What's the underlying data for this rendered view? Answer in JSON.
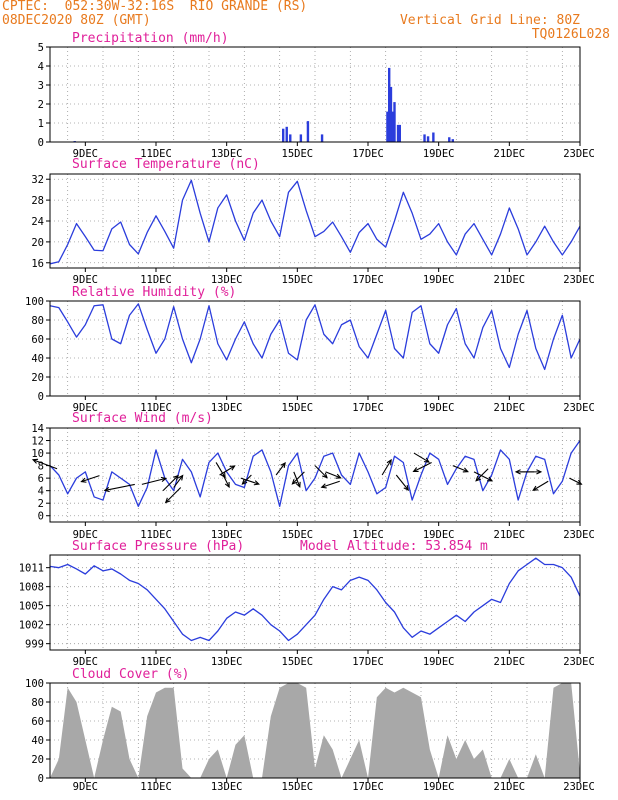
{
  "header": {
    "left_line1": "CPTEC:  052:30W-32:16S  RIO GRANDE (RS)",
    "left_line2": "08DEC2020 80Z (GMT)",
    "right_line1": "Vertical Grid Line: 80Z",
    "right_line2": "TQ0126L028"
  },
  "colors": {
    "header": "#e87a1e",
    "panel_title": "#e0209a",
    "line": "#2b3ddc",
    "arrow": "#000000",
    "cloud_fill": "#a8a8a8"
  },
  "chart_data": [
    {
      "id": "precip",
      "type": "bar",
      "title": "Precipitation (mm/h)",
      "ylim": [
        0,
        5
      ],
      "yticks": [
        "0",
        "1",
        "2",
        "3",
        "4",
        "5"
      ],
      "xticks": [
        "9DEC",
        "11DEC",
        "13DEC",
        "15DEC",
        "17DEC",
        "19DEC",
        "21DEC",
        "23DEC"
      ],
      "grid": true,
      "x": [
        8.7,
        14.6,
        14.7,
        14.8,
        15.1,
        15.3,
        15.7,
        17.55,
        17.6,
        17.65,
        17.7,
        17.75,
        17.85,
        17.9,
        18.6,
        18.7,
        18.85,
        19.3,
        19.4
      ],
      "values": [
        0.05,
        0.7,
        0.8,
        0.4,
        0.4,
        1.1,
        0.4,
        1.6,
        3.9,
        2.9,
        1.6,
        2.1,
        0.9,
        0.9,
        0.4,
        0.3,
        0.5,
        0.25,
        0.15
      ]
    },
    {
      "id": "temp",
      "type": "line",
      "title": "Surface Temperature (nC)",
      "ylim": [
        15,
        33
      ],
      "yticks": [
        "16",
        "20",
        "24",
        "28",
        "32"
      ],
      "xticks": [
        "9DEC",
        "11DEC",
        "13DEC",
        "15DEC",
        "17DEC",
        "19DEC",
        "21DEC",
        "23DEC"
      ],
      "grid": true,
      "x": [
        8.0,
        8.25,
        8.5,
        8.75,
        9.0,
        9.25,
        9.5,
        9.75,
        10.0,
        10.25,
        10.5,
        10.75,
        11.0,
        11.25,
        11.5,
        11.75,
        12.0,
        12.25,
        12.5,
        12.75,
        13.0,
        13.25,
        13.5,
        13.75,
        14.0,
        14.25,
        14.5,
        14.75,
        15.0,
        15.25,
        15.5,
        15.75,
        16.0,
        16.25,
        16.5,
        16.75,
        17.0,
        17.25,
        17.5,
        17.75,
        18.0,
        18.25,
        18.5,
        18.75,
        19.0,
        19.25,
        19.5,
        19.75,
        20.0,
        20.25,
        20.5,
        20.75,
        21.0,
        21.25,
        21.5,
        21.75,
        22.0,
        22.25,
        22.5,
        22.75,
        23.0
      ],
      "values": [
        15.8,
        16.2,
        19.5,
        23.5,
        21.0,
        18.4,
        18.3,
        22.5,
        23.8,
        19.5,
        17.7,
        21.8,
        25.0,
        22.0,
        18.8,
        28.0,
        31.8,
        25.5,
        20.0,
        26.5,
        29.0,
        24.0,
        20.3,
        25.5,
        28.0,
        24.0,
        21.0,
        29.5,
        31.6,
        26.0,
        21.0,
        22.0,
        23.8,
        21.0,
        18.0,
        21.8,
        23.5,
        20.5,
        19.0,
        24.0,
        29.5,
        25.5,
        20.5,
        21.5,
        23.5,
        20.0,
        17.5,
        21.5,
        23.5,
        20.5,
        17.5,
        21.5,
        26.5,
        22.5,
        17.5,
        20.0,
        23.0,
        20.0,
        17.5,
        20.0,
        23.0
      ]
    },
    {
      "id": "rh",
      "type": "line",
      "title": "Relative Humidity (%)",
      "ylim": [
        0,
        100
      ],
      "yticks": [
        "0",
        "20",
        "40",
        "60",
        "80",
        "100"
      ],
      "xticks": [
        "9DEC",
        "11DEC",
        "13DEC",
        "15DEC",
        "17DEC",
        "19DEC",
        "21DEC",
        "23DEC"
      ],
      "grid": true,
      "x": [
        8.0,
        8.25,
        8.5,
        8.75,
        9.0,
        9.25,
        9.5,
        9.75,
        10.0,
        10.25,
        10.5,
        10.75,
        11.0,
        11.25,
        11.5,
        11.75,
        12.0,
        12.25,
        12.5,
        12.75,
        13.0,
        13.25,
        13.5,
        13.75,
        14.0,
        14.25,
        14.5,
        14.75,
        15.0,
        15.25,
        15.5,
        15.75,
        16.0,
        16.25,
        16.5,
        16.75,
        17.0,
        17.25,
        17.5,
        17.75,
        18.0,
        18.25,
        18.5,
        18.75,
        19.0,
        19.25,
        19.5,
        19.75,
        20.0,
        20.25,
        20.5,
        20.75,
        21.0,
        21.25,
        21.5,
        21.75,
        22.0,
        22.25,
        22.5,
        22.75,
        23.0
      ],
      "values": [
        95,
        93,
        78,
        62,
        75,
        95,
        96,
        60,
        55,
        85,
        97,
        70,
        45,
        60,
        94,
        60,
        35,
        60,
        95,
        55,
        38,
        60,
        78,
        55,
        40,
        65,
        80,
        45,
        38,
        80,
        96,
        65,
        55,
        75,
        80,
        52,
        40,
        65,
        90,
        50,
        40,
        88,
        95,
        55,
        45,
        75,
        92,
        55,
        40,
        72,
        90,
        50,
        30,
        65,
        90,
        50,
        28,
        60,
        85,
        40,
        60
      ]
    },
    {
      "id": "wind",
      "type": "line",
      "title": "Surface Wind (m/s)",
      "ylim": [
        -1,
        14
      ],
      "yticks": [
        "0",
        "2",
        "4",
        "6",
        "8",
        "10",
        "12",
        "14"
      ],
      "xticks": [
        "9DEC",
        "11DEC",
        "13DEC",
        "15DEC",
        "17DEC",
        "19DEC",
        "21DEC",
        "23DEC"
      ],
      "grid": true,
      "x": [
        8.0,
        8.25,
        8.5,
        8.75,
        9.0,
        9.25,
        9.5,
        9.75,
        10.0,
        10.25,
        10.5,
        10.75,
        11.0,
        11.25,
        11.5,
        11.75,
        12.0,
        12.25,
        12.5,
        12.75,
        13.0,
        13.25,
        13.5,
        13.75,
        14.0,
        14.25,
        14.5,
        14.75,
        15.0,
        15.25,
        15.5,
        15.75,
        16.0,
        16.25,
        16.5,
        16.75,
        17.0,
        17.25,
        17.5,
        17.75,
        18.0,
        18.25,
        18.5,
        18.75,
        19.0,
        19.25,
        19.5,
        19.75,
        20.0,
        20.25,
        20.5,
        20.75,
        21.0,
        21.25,
        21.5,
        21.75,
        22.0,
        22.25,
        22.5,
        22.75,
        23.0
      ],
      "values": [
        8.0,
        6.5,
        3.5,
        6.0,
        7.0,
        3.0,
        2.5,
        7.0,
        6.0,
        5.0,
        1.5,
        4.5,
        10.5,
        6.0,
        4.0,
        9.0,
        7.0,
        3.0,
        8.5,
        10.0,
        7.0,
        5.0,
        4.5,
        9.5,
        10.5,
        7.0,
        1.5,
        8.0,
        10.0,
        4.0,
        6.0,
        9.5,
        10.0,
        6.5,
        5.0,
        10.0,
        7.0,
        3.5,
        4.5,
        9.5,
        8.5,
        2.5,
        6.5,
        10.0,
        9.0,
        5.0,
        7.5,
        9.5,
        9.0,
        4.0,
        6.5,
        10.5,
        9.0,
        2.5,
        7.0,
        9.5,
        9.0,
        3.5,
        5.5,
        10.0,
        12.0
      ],
      "arrows": [
        {
          "x": 8.2,
          "y": 7.5,
          "dx": -8,
          "dy": -3
        },
        {
          "x": 9.4,
          "y": 6.4,
          "dx": -6,
          "dy": 2
        },
        {
          "x": 10.4,
          "y": 5.0,
          "dx": -10,
          "dy": 2
        },
        {
          "x": 10.6,
          "y": 5.0,
          "dx": 8,
          "dy": -2
        },
        {
          "x": 11.2,
          "y": 4.0,
          "dx": 5,
          "dy": -5
        },
        {
          "x": 11.5,
          "y": 4.5,
          "dx": 3,
          "dy": -4
        },
        {
          "x": 11.7,
          "y": 4.5,
          "dx": -5,
          "dy": 5
        },
        {
          "x": 12.7,
          "y": 8.5,
          "dx": 3,
          "dy": 5
        },
        {
          "x": 12.8,
          "y": 6.5,
          "dx": 5,
          "dy": -3
        },
        {
          "x": 12.9,
          "y": 6.5,
          "dx": 2,
          "dy": 4
        },
        {
          "x": 13.4,
          "y": 6.0,
          "dx": 6,
          "dy": 2
        },
        {
          "x": 13.7,
          "y": 6.5,
          "dx": -3,
          "dy": 3
        },
        {
          "x": 14.4,
          "y": 6.5,
          "dx": 3,
          "dy": -4
        },
        {
          "x": 14.9,
          "y": 7.0,
          "dx": 2,
          "dy": 5
        },
        {
          "x": 15.2,
          "y": 7.0,
          "dx": -4,
          "dy": 4
        },
        {
          "x": 15.5,
          "y": 8.0,
          "dx": 4,
          "dy": 4
        },
        {
          "x": 15.8,
          "y": 7.0,
          "dx": 5,
          "dy": 2
        },
        {
          "x": 16.2,
          "y": 5.5,
          "dx": -6,
          "dy": 2
        },
        {
          "x": 17.4,
          "y": 6.5,
          "dx": 3,
          "dy": -5
        },
        {
          "x": 17.8,
          "y": 6.5,
          "dx": 4,
          "dy": 5
        },
        {
          "x": 18.3,
          "y": 10.0,
          "dx": 5,
          "dy": 3
        },
        {
          "x": 18.8,
          "y": 8.5,
          "dx": -6,
          "dy": 3
        },
        {
          "x": 19.4,
          "y": 8.0,
          "dx": 5,
          "dy": 2
        },
        {
          "x": 20.0,
          "y": 7.0,
          "dx": 6,
          "dy": 3
        },
        {
          "x": 20.4,
          "y": 7.5,
          "dx": -4,
          "dy": 4
        },
        {
          "x": 21.3,
          "y": 7.0,
          "dx": 7,
          "dy": 0
        },
        {
          "x": 21.7,
          "y": 7.0,
          "dx": -6,
          "dy": 0
        },
        {
          "x": 22.1,
          "y": 5.5,
          "dx": -5,
          "dy": 3
        },
        {
          "x": 22.7,
          "y": 6.0,
          "dx": 4,
          "dy": 2
        }
      ]
    },
    {
      "id": "pressure",
      "type": "line",
      "title": "Surface Pressure (hPa)",
      "subtitle": "Model Altitude: 53.854  m",
      "ylim": [
        998,
        1013
      ],
      "yticks": [
        "999",
        "1002",
        "1005",
        "1008",
        "1011"
      ],
      "xticks": [
        "9DEC",
        "11DEC",
        "13DEC",
        "15DEC",
        "17DEC",
        "19DEC",
        "21DEC",
        "23DEC"
      ],
      "grid": true,
      "x": [
        8.0,
        8.25,
        8.5,
        8.75,
        9.0,
        9.25,
        9.5,
        9.75,
        10.0,
        10.25,
        10.5,
        10.75,
        11.0,
        11.25,
        11.5,
        11.75,
        12.0,
        12.25,
        12.5,
        12.75,
        13.0,
        13.25,
        13.5,
        13.75,
        14.0,
        14.25,
        14.5,
        14.75,
        15.0,
        15.25,
        15.5,
        15.75,
        16.0,
        16.25,
        16.5,
        16.75,
        17.0,
        17.25,
        17.5,
        17.75,
        18.0,
        18.25,
        18.5,
        18.75,
        19.0,
        19.25,
        19.5,
        19.75,
        20.0,
        20.25,
        20.5,
        20.75,
        21.0,
        21.25,
        21.5,
        21.75,
        22.0,
        22.25,
        22.5,
        22.75,
        23.0
      ],
      "values": [
        1011.2,
        1011.0,
        1011.5,
        1010.8,
        1010.0,
        1011.3,
        1010.5,
        1010.8,
        1010.0,
        1009.0,
        1008.5,
        1007.5,
        1006.0,
        1004.5,
        1002.5,
        1000.5,
        999.5,
        1000.0,
        999.5,
        1001.0,
        1003.0,
        1004.0,
        1003.5,
        1004.5,
        1003.5,
        1002.0,
        1001.0,
        999.5,
        1000.5,
        1002.0,
        1003.5,
        1006.0,
        1008.0,
        1007.5,
        1009.0,
        1009.5,
        1009.0,
        1007.5,
        1005.5,
        1004.0,
        1001.5,
        1000.0,
        1001.0,
        1000.5,
        1001.5,
        1002.5,
        1003.5,
        1002.5,
        1004.0,
        1005.0,
        1006.0,
        1005.5,
        1008.5,
        1010.5,
        1011.5,
        1012.5,
        1011.5,
        1011.5,
        1011.0,
        1009.5,
        1006.5
      ]
    },
    {
      "id": "cloud",
      "type": "area",
      "title": "Cloud Cover (%)",
      "ylim": [
        0,
        100
      ],
      "yticks": [
        "0",
        "20",
        "40",
        "60",
        "80",
        "100"
      ],
      "xticks": [
        "9DEC",
        "11DEC",
        "13DEC",
        "15DEC",
        "17DEC",
        "19DEC",
        "21DEC",
        "23DEC"
      ],
      "grid": true,
      "x": [
        8.0,
        8.25,
        8.5,
        8.75,
        9.0,
        9.25,
        9.5,
        9.75,
        10.0,
        10.25,
        10.5,
        10.75,
        11.0,
        11.25,
        11.5,
        11.75,
        12.0,
        12.25,
        12.5,
        12.75,
        13.0,
        13.25,
        13.5,
        13.75,
        14.0,
        14.25,
        14.5,
        14.75,
        15.0,
        15.25,
        15.5,
        15.75,
        16.0,
        16.25,
        16.5,
        16.75,
        17.0,
        17.25,
        17.5,
        17.75,
        18.0,
        18.25,
        18.5,
        18.75,
        19.0,
        19.25,
        19.5,
        19.75,
        20.0,
        20.25,
        20.5,
        20.75,
        21.0,
        21.25,
        21.5,
        21.75,
        22.0,
        22.25,
        22.5,
        22.75,
        23.0
      ],
      "values": [
        0,
        20,
        95,
        80,
        40,
        0,
        40,
        75,
        70,
        20,
        0,
        65,
        90,
        95,
        95,
        10,
        0,
        0,
        20,
        30,
        0,
        35,
        45,
        0,
        0,
        65,
        95,
        100,
        100,
        95,
        10,
        45,
        30,
        0,
        20,
        40,
        0,
        85,
        95,
        90,
        95,
        90,
        85,
        30,
        0,
        45,
        20,
        40,
        20,
        30,
        0,
        0,
        20,
        0,
        0,
        25,
        0,
        95,
        100,
        100,
        5
      ]
    }
  ]
}
